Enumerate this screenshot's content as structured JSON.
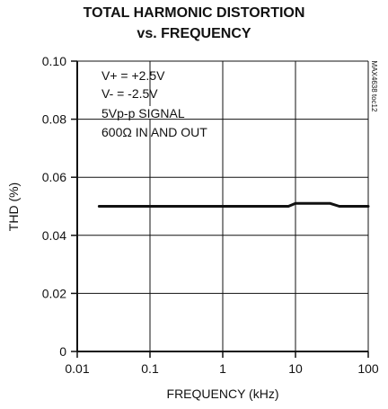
{
  "chart_data": {
    "type": "line",
    "title_lines": [
      "TOTAL HARMONIC DISTORTION",
      "vs. FREQUENCY"
    ],
    "xlabel": "FREQUENCY (kHz)",
    "ylabel": "THD (%)",
    "x_scale": "log",
    "xlim": [
      0.01,
      100
    ],
    "ylim": [
      0,
      0.1
    ],
    "x_ticks": [
      0.01,
      0.1,
      1,
      10,
      100
    ],
    "x_tick_labels": [
      "0.01",
      "0.1",
      "1",
      "10",
      "100"
    ],
    "y_ticks": [
      0,
      0.02,
      0.04,
      0.06,
      0.08,
      0.1
    ],
    "y_tick_labels": [
      "0",
      "0.02",
      "0.04",
      "0.06",
      "0.08",
      "0.10"
    ],
    "grid": true,
    "annotations": [
      "V+ = +2.5V",
      "V- = -2.5V",
      "5Vp-p SIGNAL",
      "600Ω IN AND OUT"
    ],
    "side_label": "MAX4638 toc12",
    "series": [
      {
        "x": [
          0.02,
          0.05,
          0.1,
          0.2,
          0.5,
          1,
          2,
          5,
          8,
          10,
          15,
          20,
          30,
          40,
          50,
          70,
          100
        ],
        "y": [
          0.05,
          0.05,
          0.05,
          0.05,
          0.05,
          0.05,
          0.05,
          0.05,
          0.05,
          0.051,
          0.051,
          0.051,
          0.051,
          0.05,
          0.05,
          0.05,
          0.05
        ]
      }
    ],
    "line_color": "#111111"
  }
}
